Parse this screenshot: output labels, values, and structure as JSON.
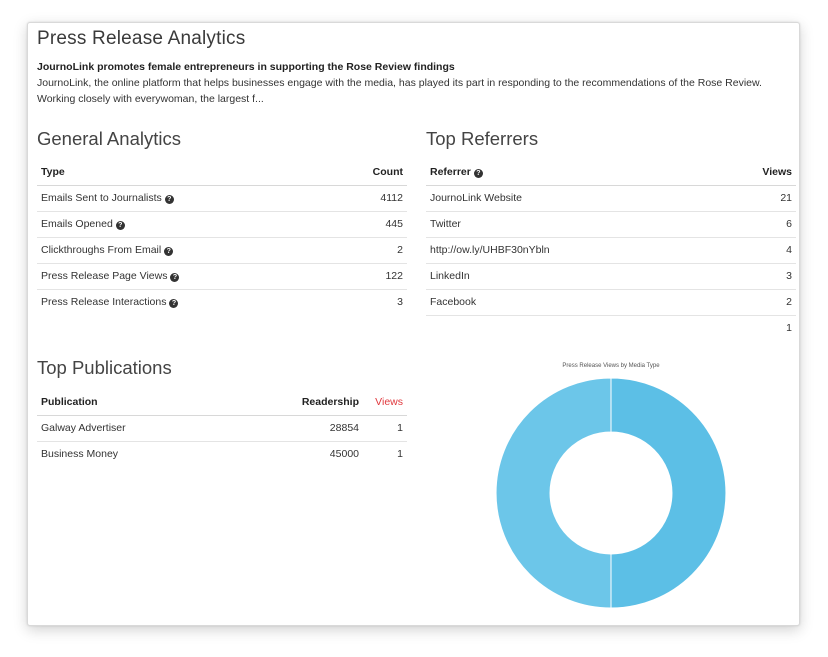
{
  "page": {
    "title": "Press Release Analytics",
    "headline": "JournoLink promotes female entrepreneurs in supporting the Rose Review findings",
    "summary": "JournoLink, the online platform that helps businesses engage with the media, has played its part in responding to the recommendations of the Rose Review. Working closely with everywoman, the largest f..."
  },
  "general_analytics": {
    "title": "General Analytics",
    "headers": {
      "type": "Type",
      "count": "Count"
    },
    "rows": [
      {
        "type": "Emails Sent to Journalists",
        "count": "4112"
      },
      {
        "type": "Emails Opened",
        "count": "445"
      },
      {
        "type": "Clickthroughs From Email",
        "count": "2"
      },
      {
        "type": "Press Release Page Views",
        "count": "122"
      },
      {
        "type": "Press Release Interactions",
        "count": "3"
      }
    ]
  },
  "top_referrers": {
    "title": "Top Referrers",
    "headers": {
      "referrer": "Referrer",
      "views": "Views"
    },
    "rows": [
      {
        "referrer": "JournoLink Website",
        "views": "21"
      },
      {
        "referrer": "Twitter",
        "views": "6"
      },
      {
        "referrer": "http://ow.ly/UHBF30nYbln",
        "views": "4"
      },
      {
        "referrer": "LinkedIn",
        "views": "3"
      },
      {
        "referrer": "Facebook",
        "views": "2"
      },
      {
        "referrer": "",
        "views": "1"
      }
    ]
  },
  "top_publications": {
    "title": "Top Publications",
    "headers": {
      "publication": "Publication",
      "readership": "Readership",
      "views": "Views"
    },
    "rows": [
      {
        "publication": "Galway Advertiser",
        "readership": "28854",
        "views": "1"
      },
      {
        "publication": "Business Money",
        "readership": "45000",
        "views": "1"
      }
    ]
  },
  "colors": {
    "donut_left": "#6cc6e9",
    "donut_right": "#5cbfe6",
    "views_header": "#e0393e"
  },
  "chart_data": {
    "type": "pie",
    "title": "Press Release Views by Media Type",
    "donut": true,
    "categories": [
      "",
      ""
    ],
    "values": [
      50,
      50
    ]
  }
}
